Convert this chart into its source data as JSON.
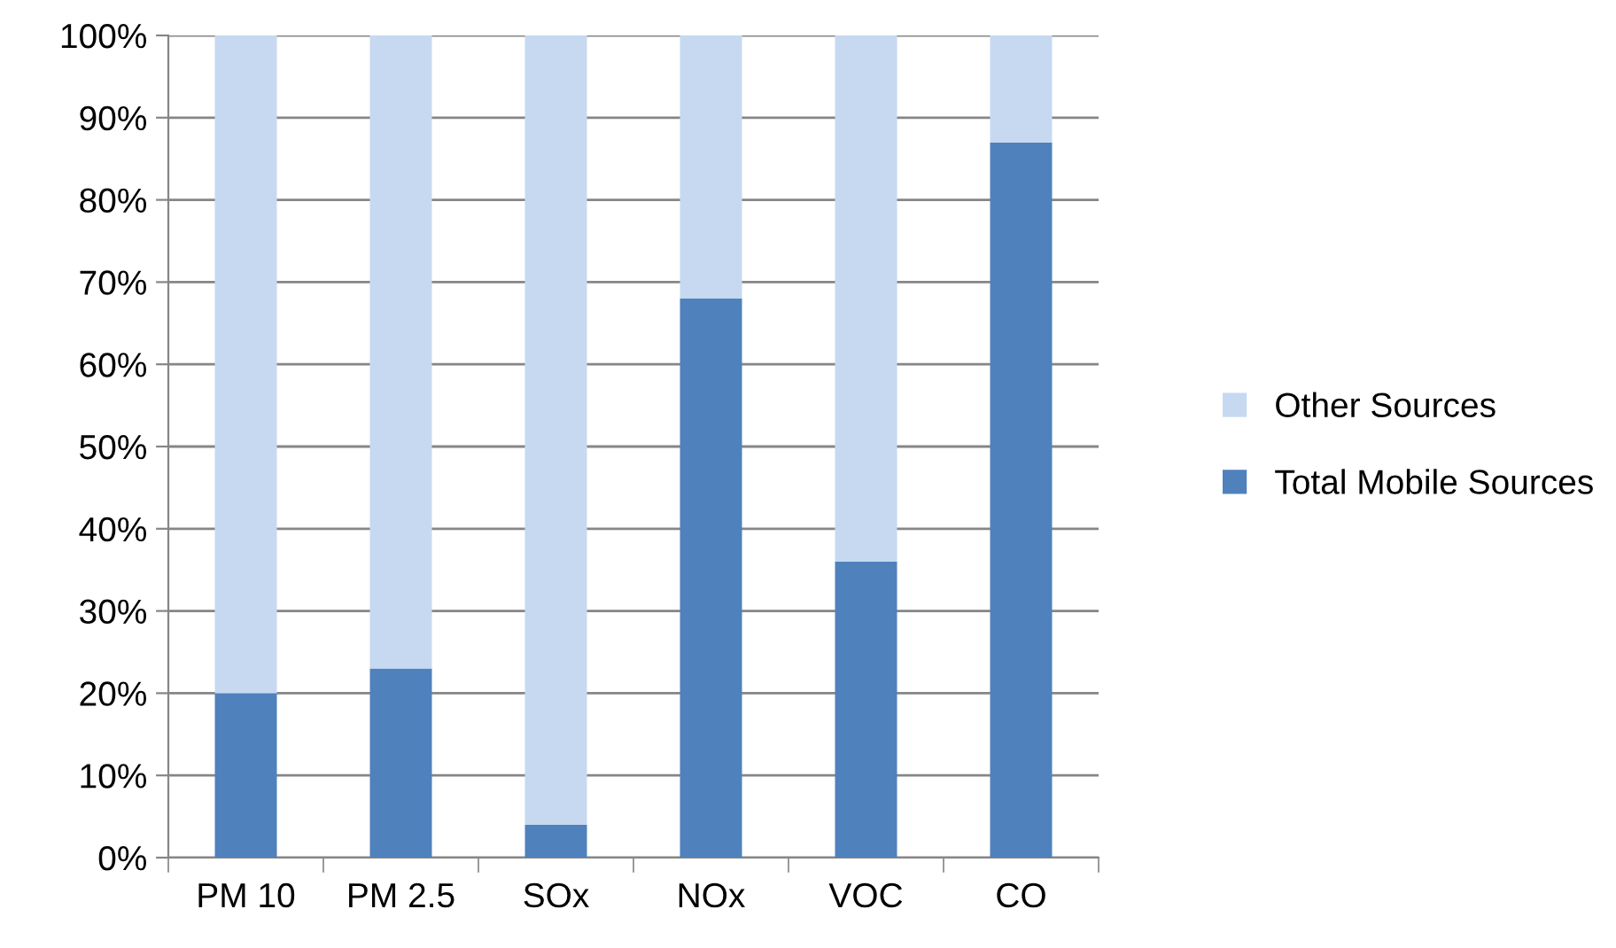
{
  "chart_data": {
    "type": "bar",
    "stacked": true,
    "categories": [
      "PM 10",
      "PM 2.5",
      "SOx",
      "NOx",
      "VOC",
      "CO"
    ],
    "series": [
      {
        "name": "Total Mobile Sources",
        "color": "#4f81bd",
        "values": [
          20,
          23,
          4,
          68,
          36,
          87
        ]
      },
      {
        "name": "Other Sources",
        "color": "#c6d9f1",
        "values": [
          80,
          77,
          96,
          32,
          64,
          13
        ]
      }
    ],
    "ylim": [
      0,
      100
    ],
    "yticks": [
      {
        "value": 0,
        "label": "0%"
      },
      {
        "value": 10,
        "label": "10%"
      },
      {
        "value": 20,
        "label": "20%"
      },
      {
        "value": 30,
        "label": "30%"
      },
      {
        "value": 40,
        "label": "40%"
      },
      {
        "value": 50,
        "label": "50%"
      },
      {
        "value": 60,
        "label": "60%"
      },
      {
        "value": 70,
        "label": "70%"
      },
      {
        "value": 80,
        "label": "80%"
      },
      {
        "value": 90,
        "label": "90%"
      },
      {
        "value": 100,
        "label": "100%"
      }
    ],
    "grid": "y",
    "legend": "right"
  }
}
